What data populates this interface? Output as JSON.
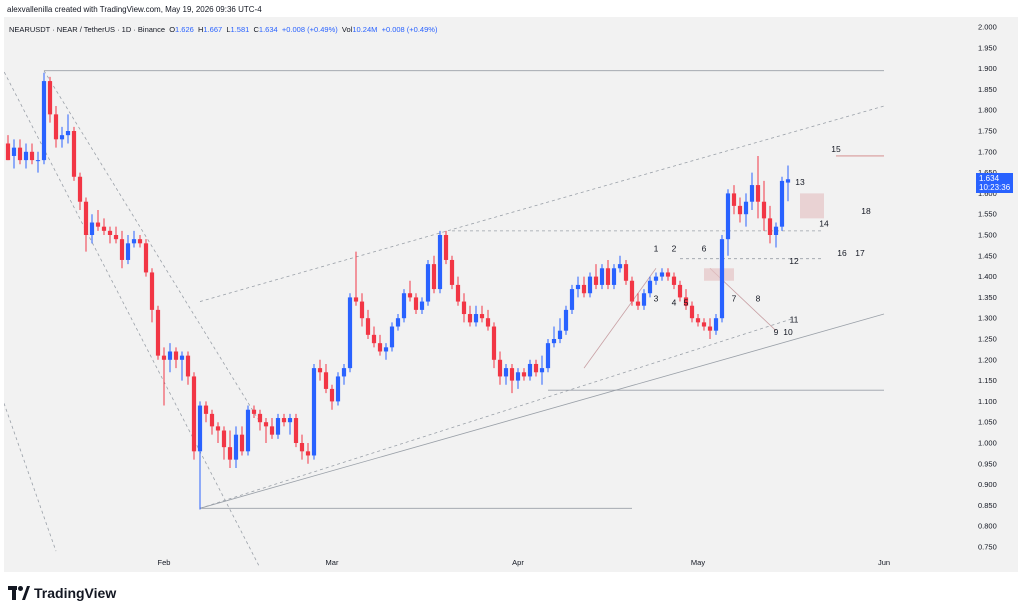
{
  "header": {
    "author_line": "alexvallenilla created with TradingView.com, May 19, 2026 09:36 UTC-4"
  },
  "legend": {
    "symbol": "NEARUSDT · NEAR / TetherUS · 1D · Binance",
    "open_label": "O",
    "open": "1.626",
    "high_label": "H",
    "high": "1.667",
    "low_label": "L",
    "low": "1.581",
    "close_label": "C",
    "close": "1.634",
    "change": "+0.008 (+0.49%)",
    "vol_label": "Vol",
    "vol": "10.24M",
    "vol_change": "+0.008 (+0.49%)"
  },
  "price_tag": {
    "price": "1.634",
    "countdown": "10:23:36"
  },
  "footer": {
    "brand": "TradingView"
  },
  "colors": {
    "up": "#2962ff",
    "down": "#f23645",
    "accent": "#2962ff",
    "background": "#f2f2f2"
  },
  "chart_data": {
    "type": "candlestick",
    "y_range": [
      0.725,
      2.015
    ],
    "y_ticks": [
      "2.000",
      "1.950",
      "1.900",
      "1.850",
      "1.800",
      "1.750",
      "1.700",
      "1.650",
      "1.600",
      "1.550",
      "1.500",
      "1.450",
      "1.400",
      "1.350",
      "1.300",
      "1.250",
      "1.200",
      "1.150",
      "1.100",
      "1.050",
      "1.000",
      "0.950",
      "0.900",
      "0.850",
      "0.800",
      "0.750"
    ],
    "x_labels": [
      {
        "label": "Feb",
        "index": 26
      },
      {
        "label": "Mar",
        "index": 54
      },
      {
        "label": "Apr",
        "index": 85
      },
      {
        "label": "May",
        "index": 115
      },
      {
        "label": "Jun",
        "index": 146
      }
    ],
    "candles": [
      {
        "o": 1.72,
        "h": 1.74,
        "l": 1.68,
        "c": 1.68
      },
      {
        "o": 1.69,
        "h": 1.73,
        "l": 1.66,
        "c": 1.71
      },
      {
        "o": 1.71,
        "h": 1.73,
        "l": 1.67,
        "c": 1.68
      },
      {
        "o": 1.68,
        "h": 1.72,
        "l": 1.66,
        "c": 1.7
      },
      {
        "o": 1.7,
        "h": 1.72,
        "l": 1.67,
        "c": 1.68
      },
      {
        "o": 1.68,
        "h": 1.7,
        "l": 1.65,
        "c": 1.68
      },
      {
        "o": 1.68,
        "h": 1.89,
        "l": 1.67,
        "c": 1.87
      },
      {
        "o": 1.87,
        "h": 1.88,
        "l": 1.77,
        "c": 1.79
      },
      {
        "o": 1.79,
        "h": 1.81,
        "l": 1.71,
        "c": 1.73
      },
      {
        "o": 1.73,
        "h": 1.76,
        "l": 1.71,
        "c": 1.74
      },
      {
        "o": 1.74,
        "h": 1.79,
        "l": 1.72,
        "c": 1.75
      },
      {
        "o": 1.75,
        "h": 1.76,
        "l": 1.63,
        "c": 1.64
      },
      {
        "o": 1.64,
        "h": 1.65,
        "l": 1.56,
        "c": 1.58
      },
      {
        "o": 1.58,
        "h": 1.59,
        "l": 1.46,
        "c": 1.5
      },
      {
        "o": 1.5,
        "h": 1.55,
        "l": 1.48,
        "c": 1.53
      },
      {
        "o": 1.53,
        "h": 1.56,
        "l": 1.51,
        "c": 1.52
      },
      {
        "o": 1.52,
        "h": 1.54,
        "l": 1.5,
        "c": 1.51
      },
      {
        "o": 1.51,
        "h": 1.52,
        "l": 1.48,
        "c": 1.5
      },
      {
        "o": 1.5,
        "h": 1.52,
        "l": 1.48,
        "c": 1.49
      },
      {
        "o": 1.49,
        "h": 1.51,
        "l": 1.42,
        "c": 1.44
      },
      {
        "o": 1.44,
        "h": 1.5,
        "l": 1.43,
        "c": 1.48
      },
      {
        "o": 1.48,
        "h": 1.51,
        "l": 1.47,
        "c": 1.49
      },
      {
        "o": 1.49,
        "h": 1.5,
        "l": 1.47,
        "c": 1.48
      },
      {
        "o": 1.48,
        "h": 1.49,
        "l": 1.4,
        "c": 1.41
      },
      {
        "o": 1.41,
        "h": 1.42,
        "l": 1.29,
        "c": 1.32
      },
      {
        "o": 1.32,
        "h": 1.33,
        "l": 1.2,
        "c": 1.21
      },
      {
        "o": 1.21,
        "h": 1.23,
        "l": 1.09,
        "c": 1.2
      },
      {
        "o": 1.2,
        "h": 1.24,
        "l": 1.17,
        "c": 1.22
      },
      {
        "o": 1.22,
        "h": 1.23,
        "l": 1.18,
        "c": 1.2
      },
      {
        "o": 1.2,
        "h": 1.22,
        "l": 1.15,
        "c": 1.21
      },
      {
        "o": 1.21,
        "h": 1.22,
        "l": 1.14,
        "c": 1.16
      },
      {
        "o": 1.16,
        "h": 1.17,
        "l": 0.96,
        "c": 0.98
      },
      {
        "o": 0.98,
        "h": 1.1,
        "l": 0.84,
        "c": 1.09
      },
      {
        "o": 1.09,
        "h": 1.1,
        "l": 1.05,
        "c": 1.07
      },
      {
        "o": 1.07,
        "h": 1.08,
        "l": 1.02,
        "c": 1.04
      },
      {
        "o": 1.04,
        "h": 1.05,
        "l": 1.0,
        "c": 1.03
      },
      {
        "o": 1.03,
        "h": 1.04,
        "l": 0.96,
        "c": 0.99
      },
      {
        "o": 0.99,
        "h": 1.03,
        "l": 0.94,
        "c": 0.96
      },
      {
        "o": 0.96,
        "h": 1.04,
        "l": 0.94,
        "c": 1.02
      },
      {
        "o": 1.02,
        "h": 1.04,
        "l": 0.97,
        "c": 0.98
      },
      {
        "o": 0.98,
        "h": 1.09,
        "l": 0.97,
        "c": 1.08
      },
      {
        "o": 1.08,
        "h": 1.09,
        "l": 1.06,
        "c": 1.07
      },
      {
        "o": 1.07,
        "h": 1.08,
        "l": 1.03,
        "c": 1.05
      },
      {
        "o": 1.05,
        "h": 1.06,
        "l": 1.0,
        "c": 1.04
      },
      {
        "o": 1.04,
        "h": 1.06,
        "l": 1.01,
        "c": 1.02
      },
      {
        "o": 1.02,
        "h": 1.07,
        "l": 1.01,
        "c": 1.06
      },
      {
        "o": 1.06,
        "h": 1.07,
        "l": 1.04,
        "c": 1.05
      },
      {
        "o": 1.05,
        "h": 1.07,
        "l": 1.02,
        "c": 1.06
      },
      {
        "o": 1.06,
        "h": 1.07,
        "l": 0.99,
        "c": 1.0
      },
      {
        "o": 1.0,
        "h": 1.02,
        "l": 0.96,
        "c": 0.98
      },
      {
        "o": 0.98,
        "h": 1.0,
        "l": 0.95,
        "c": 0.97
      },
      {
        "o": 0.97,
        "h": 1.19,
        "l": 0.96,
        "c": 1.18
      },
      {
        "o": 1.18,
        "h": 1.2,
        "l": 1.15,
        "c": 1.17
      },
      {
        "o": 1.17,
        "h": 1.19,
        "l": 1.12,
        "c": 1.13
      },
      {
        "o": 1.13,
        "h": 1.14,
        "l": 1.08,
        "c": 1.1
      },
      {
        "o": 1.1,
        "h": 1.17,
        "l": 1.09,
        "c": 1.16
      },
      {
        "o": 1.16,
        "h": 1.19,
        "l": 1.14,
        "c": 1.18
      },
      {
        "o": 1.18,
        "h": 1.36,
        "l": 1.17,
        "c": 1.35
      },
      {
        "o": 1.35,
        "h": 1.46,
        "l": 1.33,
        "c": 1.34
      },
      {
        "o": 1.34,
        "h": 1.36,
        "l": 1.28,
        "c": 1.3
      },
      {
        "o": 1.3,
        "h": 1.32,
        "l": 1.25,
        "c": 1.26
      },
      {
        "o": 1.26,
        "h": 1.28,
        "l": 1.23,
        "c": 1.24
      },
      {
        "o": 1.24,
        "h": 1.26,
        "l": 1.21,
        "c": 1.22
      },
      {
        "o": 1.22,
        "h": 1.24,
        "l": 1.2,
        "c": 1.23
      },
      {
        "o": 1.23,
        "h": 1.29,
        "l": 1.22,
        "c": 1.28
      },
      {
        "o": 1.28,
        "h": 1.31,
        "l": 1.27,
        "c": 1.3
      },
      {
        "o": 1.3,
        "h": 1.37,
        "l": 1.29,
        "c": 1.36
      },
      {
        "o": 1.36,
        "h": 1.39,
        "l": 1.34,
        "c": 1.35
      },
      {
        "o": 1.35,
        "h": 1.36,
        "l": 1.31,
        "c": 1.32
      },
      {
        "o": 1.32,
        "h": 1.35,
        "l": 1.31,
        "c": 1.34
      },
      {
        "o": 1.34,
        "h": 1.44,
        "l": 1.33,
        "c": 1.43
      },
      {
        "o": 1.43,
        "h": 1.45,
        "l": 1.36,
        "c": 1.37
      },
      {
        "o": 1.37,
        "h": 1.51,
        "l": 1.36,
        "c": 1.5
      },
      {
        "o": 1.5,
        "h": 1.51,
        "l": 1.43,
        "c": 1.44
      },
      {
        "o": 1.44,
        "h": 1.45,
        "l": 1.37,
        "c": 1.38
      },
      {
        "o": 1.38,
        "h": 1.4,
        "l": 1.33,
        "c": 1.34
      },
      {
        "o": 1.34,
        "h": 1.36,
        "l": 1.29,
        "c": 1.31
      },
      {
        "o": 1.31,
        "h": 1.33,
        "l": 1.28,
        "c": 1.29
      },
      {
        "o": 1.29,
        "h": 1.33,
        "l": 1.28,
        "c": 1.31
      },
      {
        "o": 1.31,
        "h": 1.33,
        "l": 1.29,
        "c": 1.3
      },
      {
        "o": 1.3,
        "h": 1.32,
        "l": 1.27,
        "c": 1.28
      },
      {
        "o": 1.28,
        "h": 1.29,
        "l": 1.18,
        "c": 1.2
      },
      {
        "o": 1.2,
        "h": 1.22,
        "l": 1.14,
        "c": 1.16
      },
      {
        "o": 1.16,
        "h": 1.19,
        "l": 1.14,
        "c": 1.18
      },
      {
        "o": 1.18,
        "h": 1.19,
        "l": 1.12,
        "c": 1.15
      },
      {
        "o": 1.15,
        "h": 1.18,
        "l": 1.13,
        "c": 1.17
      },
      {
        "o": 1.17,
        "h": 1.18,
        "l": 1.15,
        "c": 1.16
      },
      {
        "o": 1.16,
        "h": 1.2,
        "l": 1.15,
        "c": 1.19
      },
      {
        "o": 1.19,
        "h": 1.2,
        "l": 1.16,
        "c": 1.17
      },
      {
        "o": 1.17,
        "h": 1.21,
        "l": 1.14,
        "c": 1.18
      },
      {
        "o": 1.18,
        "h": 1.25,
        "l": 1.17,
        "c": 1.24
      },
      {
        "o": 1.24,
        "h": 1.28,
        "l": 1.23,
        "c": 1.25
      },
      {
        "o": 1.25,
        "h": 1.3,
        "l": 1.24,
        "c": 1.27
      },
      {
        "o": 1.27,
        "h": 1.33,
        "l": 1.26,
        "c": 1.32
      },
      {
        "o": 1.32,
        "h": 1.38,
        "l": 1.31,
        "c": 1.37
      },
      {
        "o": 1.37,
        "h": 1.4,
        "l": 1.35,
        "c": 1.38
      },
      {
        "o": 1.38,
        "h": 1.4,
        "l": 1.35,
        "c": 1.36
      },
      {
        "o": 1.36,
        "h": 1.41,
        "l": 1.35,
        "c": 1.4
      },
      {
        "o": 1.4,
        "h": 1.43,
        "l": 1.37,
        "c": 1.38
      },
      {
        "o": 1.38,
        "h": 1.43,
        "l": 1.37,
        "c": 1.42
      },
      {
        "o": 1.42,
        "h": 1.44,
        "l": 1.37,
        "c": 1.38
      },
      {
        "o": 1.38,
        "h": 1.43,
        "l": 1.37,
        "c": 1.42
      },
      {
        "o": 1.42,
        "h": 1.45,
        "l": 1.41,
        "c": 1.43
      },
      {
        "o": 1.43,
        "h": 1.44,
        "l": 1.38,
        "c": 1.39
      },
      {
        "o": 1.39,
        "h": 1.4,
        "l": 1.33,
        "c": 1.34
      },
      {
        "o": 1.34,
        "h": 1.36,
        "l": 1.32,
        "c": 1.33
      },
      {
        "o": 1.33,
        "h": 1.37,
        "l": 1.32,
        "c": 1.36
      },
      {
        "o": 1.36,
        "h": 1.4,
        "l": 1.35,
        "c": 1.39
      },
      {
        "o": 1.39,
        "h": 1.41,
        "l": 1.38,
        "c": 1.4
      },
      {
        "o": 1.4,
        "h": 1.42,
        "l": 1.39,
        "c": 1.41
      },
      {
        "o": 1.41,
        "h": 1.42,
        "l": 1.39,
        "c": 1.4
      },
      {
        "o": 1.4,
        "h": 1.41,
        "l": 1.37,
        "c": 1.38
      },
      {
        "o": 1.38,
        "h": 1.39,
        "l": 1.34,
        "c": 1.35
      },
      {
        "o": 1.35,
        "h": 1.37,
        "l": 1.32,
        "c": 1.33
      },
      {
        "o": 1.33,
        "h": 1.34,
        "l": 1.29,
        "c": 1.3
      },
      {
        "o": 1.3,
        "h": 1.31,
        "l": 1.28,
        "c": 1.29
      },
      {
        "o": 1.29,
        "h": 1.3,
        "l": 1.27,
        "c": 1.28
      },
      {
        "o": 1.28,
        "h": 1.3,
        "l": 1.25,
        "c": 1.27
      },
      {
        "o": 1.27,
        "h": 1.31,
        "l": 1.26,
        "c": 1.3
      },
      {
        "o": 1.3,
        "h": 1.5,
        "l": 1.29,
        "c": 1.49
      },
      {
        "o": 1.49,
        "h": 1.61,
        "l": 1.45,
        "c": 1.6
      },
      {
        "o": 1.6,
        "h": 1.62,
        "l": 1.55,
        "c": 1.57
      },
      {
        "o": 1.57,
        "h": 1.59,
        "l": 1.53,
        "c": 1.55
      },
      {
        "o": 1.55,
        "h": 1.6,
        "l": 1.52,
        "c": 1.58
      },
      {
        "o": 1.58,
        "h": 1.65,
        "l": 1.56,
        "c": 1.62
      },
      {
        "o": 1.62,
        "h": 1.69,
        "l": 1.54,
        "c": 1.58
      },
      {
        "o": 1.58,
        "h": 1.63,
        "l": 1.51,
        "c": 1.54
      },
      {
        "o": 1.54,
        "h": 1.57,
        "l": 1.48,
        "c": 1.5
      },
      {
        "o": 1.5,
        "h": 1.53,
        "l": 1.47,
        "c": 1.52
      },
      {
        "o": 1.52,
        "h": 1.64,
        "l": 1.51,
        "c": 1.63
      },
      {
        "o": 1.626,
        "h": 1.667,
        "l": 1.581,
        "c": 1.634
      }
    ],
    "horizontal_lines": [
      {
        "price": 1.895,
        "from": 6,
        "to": 146
      },
      {
        "price": 0.843,
        "from": 32,
        "to": 104
      },
      {
        "price": 1.127,
        "from": 90,
        "to": 146
      },
      {
        "price": 1.51,
        "from": 74,
        "to": 136,
        "dashed": true
      },
      {
        "price": 1.443,
        "from": 112,
        "to": 136,
        "dashed": true
      },
      {
        "price": 1.69,
        "from": 138,
        "to": 146,
        "red": true
      }
    ],
    "annotations": [
      {
        "label": "1",
        "i": 108,
        "p": 1.46
      },
      {
        "label": "2",
        "i": 111,
        "p": 1.46
      },
      {
        "label": "3",
        "i": 108,
        "p": 1.34
      },
      {
        "label": "4",
        "i": 111,
        "p": 1.33
      },
      {
        "label": "5",
        "i": 113,
        "p": 1.33
      },
      {
        "label": "6",
        "i": 116,
        "p": 1.46
      },
      {
        "label": "7",
        "i": 121,
        "p": 1.34
      },
      {
        "label": "8",
        "i": 125,
        "p": 1.34
      },
      {
        "label": "9",
        "i": 128,
        "p": 1.26
      },
      {
        "label": "10",
        "i": 130,
        "p": 1.26
      },
      {
        "label": "11",
        "i": 131,
        "p": 1.29
      },
      {
        "label": "12",
        "i": 131,
        "p": 1.43
      },
      {
        "label": "13",
        "i": 132,
        "p": 1.62
      },
      {
        "label": "14",
        "i": 136,
        "p": 1.52
      },
      {
        "label": "15",
        "i": 138,
        "p": 1.7
      },
      {
        "label": "16",
        "i": 139,
        "p": 1.45
      },
      {
        "label": "17",
        "i": 142,
        "p": 1.45
      },
      {
        "label": "18",
        "i": 143,
        "p": 1.55
      }
    ]
  }
}
